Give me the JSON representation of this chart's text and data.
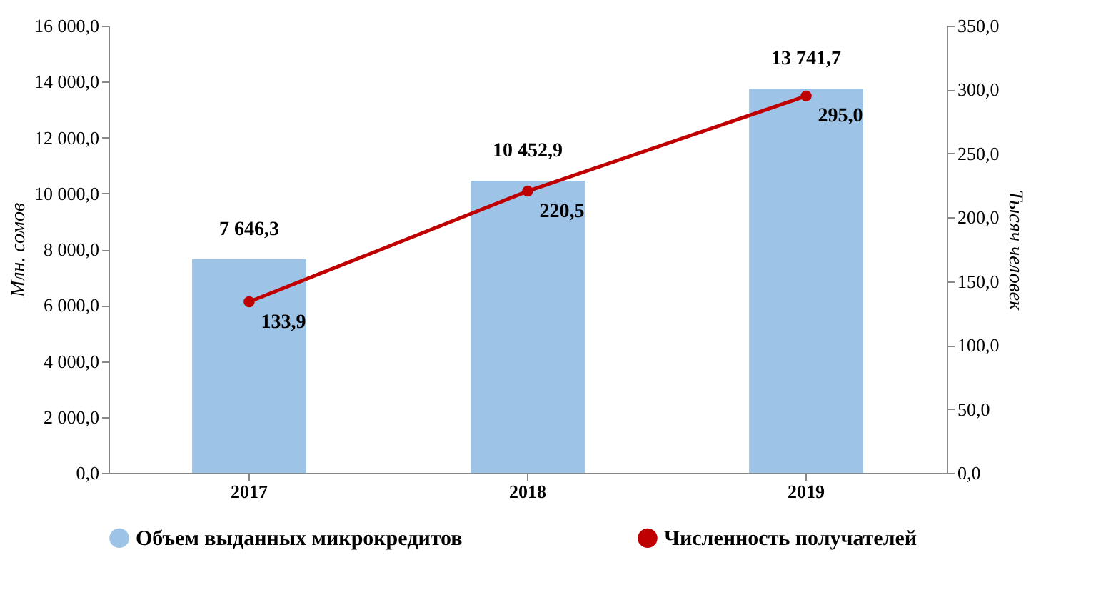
{
  "chart_data": {
    "type": "bar",
    "categories": [
      "2017",
      "2018",
      "2019"
    ],
    "series": [
      {
        "name": "Объем выданных микрокредитов",
        "color": "#9dc3e6",
        "values": [
          7646.3,
          10452.9,
          13741.7
        ],
        "value_labels": [
          "7 646,3",
          "10 452,9",
          "13 741,7"
        ]
      },
      {
        "name": "Численность получателей",
        "type": "line",
        "axis": "y2",
        "color": "#c00000",
        "marker": "circle",
        "values": [
          133.9,
          220.5,
          295.0
        ],
        "value_labels": [
          "133,9",
          "220,5",
          "295,0"
        ]
      }
    ],
    "ylabel": "Млн. сомов",
    "y2label": "Тысяч человек",
    "ylim": [
      0,
      16000
    ],
    "yticks": [
      {
        "value": 0,
        "label": "0,0"
      },
      {
        "value": 2000,
        "label": "2 000,0"
      },
      {
        "value": 4000,
        "label": "4 000,0"
      },
      {
        "value": 6000,
        "label": "6 000,0"
      },
      {
        "value": 8000,
        "label": "8 000,0"
      },
      {
        "value": 10000,
        "label": "10 000,0"
      },
      {
        "value": 12000,
        "label": "12 000,0"
      },
      {
        "value": 14000,
        "label": "14 000,0"
      },
      {
        "value": 16000,
        "label": "16 000,0"
      }
    ],
    "y2lim": [
      0,
      350
    ],
    "y2ticks": [
      {
        "value": 0,
        "label": "0,0"
      },
      {
        "value": 50,
        "label": "50,0"
      },
      {
        "value": 100,
        "label": "100,0"
      },
      {
        "value": 150,
        "label": "150,0"
      },
      {
        "value": 200,
        "label": "200,0"
      },
      {
        "value": 250,
        "label": "250,0"
      },
      {
        "value": 300,
        "label": "300,0"
      },
      {
        "value": 350,
        "label": "350,0"
      }
    ],
    "legend": "bottom"
  }
}
